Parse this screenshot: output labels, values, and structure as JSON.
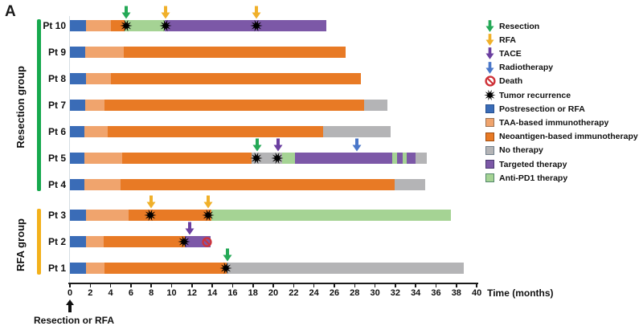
{
  "figure_label": "A",
  "chart_data": {
    "type": "bar",
    "subtype": "horizontal-stacked-swimmer-timeline",
    "xlabel": "Time (months)",
    "xlim": [
      0,
      40
    ],
    "xtick_step": 2,
    "origin_annotation": "Resection or RFA",
    "grid": false,
    "legend_position": "right",
    "groups": [
      {
        "label": "Resection group",
        "bar_color": "#17a94e",
        "patient_count": 7
      },
      {
        "label": "RFA group",
        "bar_color": "#f3b11b",
        "patient_count": 3
      }
    ],
    "segment_types": {
      "postresection": {
        "label": "Postresection or RFA",
        "color": "#3a6cb7",
        "border": "#27508f"
      },
      "taa": {
        "label": "TAA-based immunotherapy",
        "color": "#f0a46d",
        "border": "#9b7355"
      },
      "neoantigen": {
        "label": "Neoantigen-based immunotherapy",
        "color": "#e87a25",
        "border": "#a04e12"
      },
      "no_therapy": {
        "label": "No therapy",
        "color": "#b4b4b6",
        "border": "#6f7d8a"
      },
      "targeted": {
        "label": "Targeted therapy",
        "color": "#7c58a7",
        "border": "#4a3a71"
      },
      "antipd1": {
        "label": "Anti-PD1 therapy",
        "color": "#a5d394",
        "border": "#53876b"
      }
    },
    "event_types": {
      "resection": {
        "label": "Resection",
        "glyph": "arrow-down",
        "color": "#25a957"
      },
      "rfa": {
        "label": "RFA",
        "glyph": "arrow-down",
        "color": "#f0b02a"
      },
      "tace": {
        "label": "TACE",
        "glyph": "arrow-down",
        "color": "#6b3fa0"
      },
      "radiotherapy": {
        "label": "Radiotherapy",
        "glyph": "arrow-down",
        "color": "#4a77c9"
      },
      "death": {
        "label": "Death",
        "glyph": "no-sign",
        "color": "#cf3339"
      },
      "recurrence": {
        "label": "Tumor recurrence",
        "glyph": "burst-star",
        "color": "#000000"
      }
    },
    "legend_order": [
      "resection",
      "rfa",
      "tace",
      "radiotherapy",
      "death",
      "recurrence",
      "postresection",
      "taa",
      "neoantigen",
      "no_therapy",
      "targeted",
      "antipd1"
    ],
    "patients": [
      {
        "label": "Pt 10",
        "segments": [
          [
            "postresection",
            0,
            1.6
          ],
          [
            "taa",
            1.6,
            4.0
          ],
          [
            "neoantigen",
            4.0,
            5.4
          ],
          [
            "antipd1",
            5.4,
            9.3
          ],
          [
            "targeted",
            9.3,
            25.2
          ]
        ],
        "arrows": [
          [
            "resection",
            5.5
          ],
          [
            "rfa",
            9.4
          ],
          [
            "rfa",
            18.3
          ]
        ],
        "marks": [
          [
            "recurrence",
            5.5
          ],
          [
            "recurrence",
            9.4
          ],
          [
            "recurrence",
            18.3
          ]
        ]
      },
      {
        "label": "Pt 9",
        "segments": [
          [
            "postresection",
            0,
            1.5
          ],
          [
            "taa",
            1.5,
            5.3
          ],
          [
            "neoantigen",
            5.3,
            27.1
          ]
        ],
        "arrows": [],
        "marks": []
      },
      {
        "label": "Pt 8",
        "segments": [
          [
            "postresection",
            0,
            1.6
          ],
          [
            "taa",
            1.6,
            4.0
          ],
          [
            "neoantigen",
            4.0,
            28.6
          ]
        ],
        "arrows": [],
        "marks": []
      },
      {
        "label": "Pt 7",
        "segments": [
          [
            "postresection",
            0,
            1.5
          ],
          [
            "taa",
            1.5,
            3.4
          ],
          [
            "neoantigen",
            3.4,
            28.9
          ],
          [
            "no_therapy",
            28.9,
            31.2
          ]
        ],
        "arrows": [],
        "marks": []
      },
      {
        "label": "Pt 6",
        "segments": [
          [
            "postresection",
            0,
            1.4
          ],
          [
            "taa",
            1.4,
            3.7
          ],
          [
            "neoantigen",
            3.7,
            24.9
          ],
          [
            "no_therapy",
            24.9,
            31.5
          ]
        ],
        "arrows": [],
        "marks": []
      },
      {
        "label": "Pt 5",
        "segments": [
          [
            "postresection",
            0,
            1.4
          ],
          [
            "taa",
            1.4,
            5.1
          ],
          [
            "neoantigen",
            5.1,
            17.9
          ],
          [
            "no_therapy",
            17.9,
            20.9
          ],
          [
            "antipd1",
            20.9,
            22.1
          ],
          [
            "targeted",
            22.1,
            31.7
          ],
          [
            "antipd1",
            31.7,
            32.2
          ],
          [
            "targeted",
            32.2,
            32.7
          ],
          [
            "antipd1",
            32.7,
            33.1
          ],
          [
            "targeted",
            33.1,
            34.0
          ],
          [
            "no_therapy",
            34.0,
            35.1
          ]
        ],
        "arrows": [
          [
            "resection",
            18.4
          ],
          [
            "tace",
            20.5
          ],
          [
            "radiotherapy",
            28.2
          ]
        ],
        "marks": [
          [
            "recurrence",
            18.3
          ],
          [
            "recurrence",
            20.4
          ]
        ]
      },
      {
        "label": "Pt 4",
        "segments": [
          [
            "postresection",
            0,
            1.4
          ],
          [
            "taa",
            1.4,
            5.0
          ],
          [
            "neoantigen",
            5.0,
            31.9
          ],
          [
            "no_therapy",
            31.9,
            34.9
          ]
        ],
        "arrows": [],
        "marks": []
      },
      {
        "label": "Pt 3",
        "segments": [
          [
            "postresection",
            0,
            1.6
          ],
          [
            "taa",
            1.6,
            5.8
          ],
          [
            "neoantigen",
            5.8,
            13.9
          ],
          [
            "antipd1",
            13.9,
            37.5
          ]
        ],
        "arrows": [
          [
            "rfa",
            8.0
          ],
          [
            "rfa",
            13.6
          ]
        ],
        "marks": [
          [
            "recurrence",
            7.9
          ],
          [
            "recurrence",
            13.6
          ]
        ]
      },
      {
        "label": "Pt 2",
        "segments": [
          [
            "postresection",
            0,
            1.6
          ],
          [
            "taa",
            1.6,
            3.3
          ],
          [
            "neoantigen",
            3.3,
            11.3
          ],
          [
            "targeted",
            11.3,
            13.8
          ]
        ],
        "arrows": [
          [
            "tace",
            11.8
          ]
        ],
        "marks": [
          [
            "recurrence",
            11.2
          ],
          [
            "death",
            13.5
          ]
        ]
      },
      {
        "label": "Pt 1",
        "segments": [
          [
            "postresection",
            0,
            1.6
          ],
          [
            "taa",
            1.6,
            3.4
          ],
          [
            "neoantigen",
            3.4,
            15.4
          ],
          [
            "no_therapy",
            15.4,
            38.7
          ]
        ],
        "arrows": [
          [
            "resection",
            15.5
          ]
        ],
        "marks": [
          [
            "recurrence",
            15.3
          ]
        ]
      }
    ]
  }
}
